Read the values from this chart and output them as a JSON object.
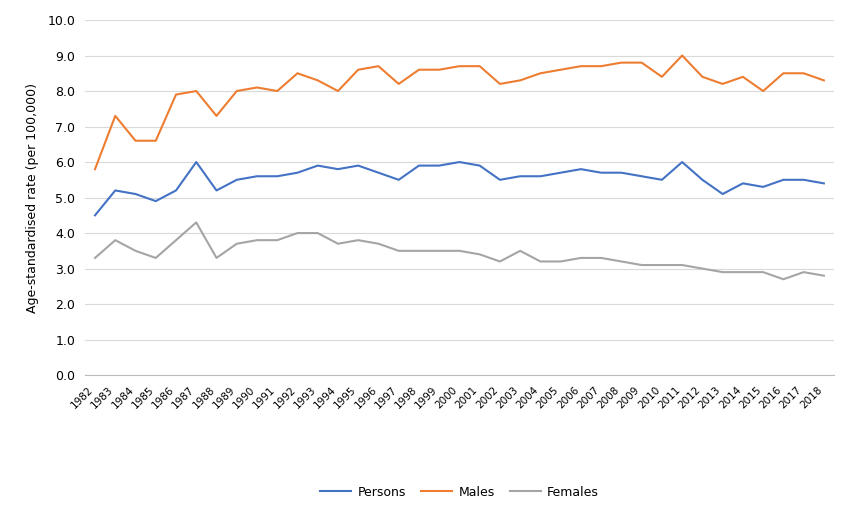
{
  "years": [
    1982,
    1983,
    1984,
    1985,
    1986,
    1987,
    1988,
    1989,
    1990,
    1991,
    1992,
    1993,
    1994,
    1995,
    1996,
    1997,
    1998,
    1999,
    2000,
    2001,
    2002,
    2003,
    2004,
    2005,
    2006,
    2007,
    2008,
    2009,
    2010,
    2011,
    2012,
    2013,
    2014,
    2015,
    2016,
    2017,
    2018
  ],
  "persons": [
    4.5,
    5.2,
    5.1,
    4.9,
    5.2,
    6.0,
    5.2,
    5.5,
    5.6,
    5.6,
    5.7,
    5.9,
    5.8,
    5.9,
    5.7,
    5.5,
    5.9,
    5.9,
    6.0,
    5.9,
    5.5,
    5.6,
    5.6,
    5.7,
    5.8,
    5.7,
    5.7,
    5.6,
    5.5,
    6.0,
    5.5,
    5.1,
    5.4,
    5.3,
    5.5,
    5.5,
    5.4
  ],
  "males": [
    5.8,
    7.3,
    6.6,
    6.6,
    7.9,
    8.0,
    7.3,
    8.0,
    8.1,
    8.0,
    8.5,
    8.3,
    8.0,
    8.6,
    8.7,
    8.2,
    8.6,
    8.6,
    8.7,
    8.7,
    8.2,
    8.3,
    8.5,
    8.6,
    8.7,
    8.7,
    8.8,
    8.8,
    8.4,
    9.0,
    8.4,
    8.2,
    8.4,
    8.0,
    8.5,
    8.5,
    8.3
  ],
  "females": [
    3.3,
    3.8,
    3.5,
    3.3,
    3.8,
    4.3,
    3.3,
    3.7,
    3.8,
    3.8,
    4.0,
    4.0,
    3.7,
    3.8,
    3.7,
    3.5,
    3.5,
    3.5,
    3.5,
    3.4,
    3.2,
    3.5,
    3.2,
    3.2,
    3.3,
    3.3,
    3.2,
    3.1,
    3.1,
    3.1,
    3.0,
    2.9,
    2.9,
    2.9,
    2.7,
    2.9,
    2.8
  ],
  "persons_color": "#4472C4",
  "males_color": "#ED7D31",
  "females_color": "#A5A5A5",
  "ylabel": "Age-standardised rate (per 100,000)",
  "ylim": [
    0.0,
    10.0
  ],
  "yticks": [
    0.0,
    1.0,
    2.0,
    3.0,
    4.0,
    5.0,
    6.0,
    7.0,
    8.0,
    9.0,
    10.0
  ],
  "background_color": "#ffffff",
  "grid_color": "#d9d9d9",
  "line_width": 1.5
}
